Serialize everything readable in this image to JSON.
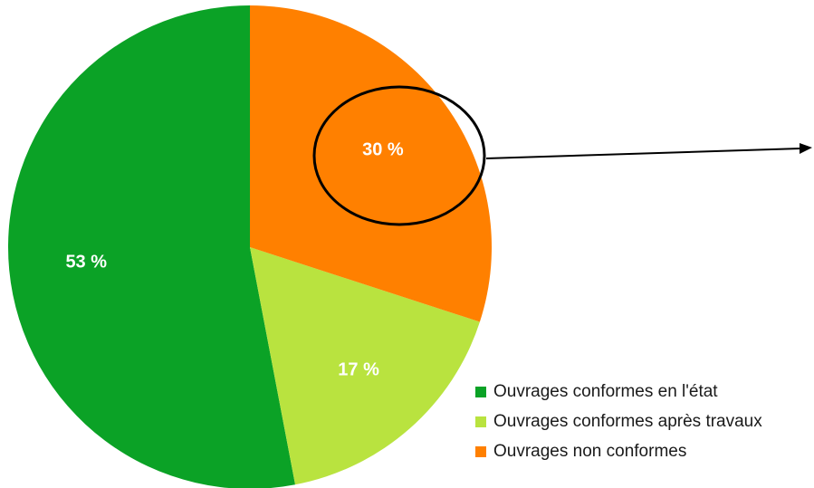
{
  "chart_data": {
    "type": "pie",
    "series": [
      {
        "name": "Ouvrages conformes en l'état",
        "color": "#0ba226",
        "values": [
          53
        ],
        "value_labels": [
          "53 %"
        ]
      },
      {
        "name": "Ouvrages conformes après travaux",
        "color": "#b9e33f",
        "values": [
          17
        ],
        "value_labels": [
          "17 %"
        ]
      },
      {
        "name": "Ouvrages non conformes",
        "color": "#ff8000",
        "values": [
          30
        ],
        "value_labels": [
          "30 %"
        ]
      }
    ]
  }
}
